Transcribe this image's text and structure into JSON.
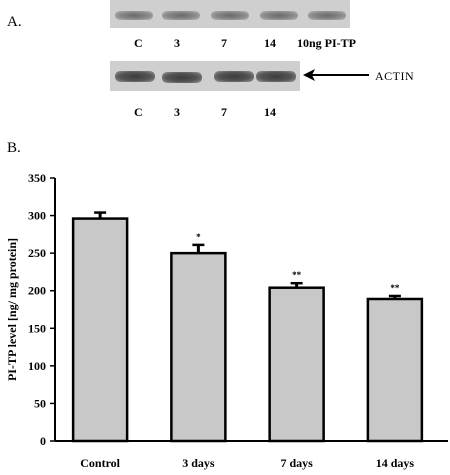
{
  "panel_a": {
    "label": "A.",
    "top_blot_lanes": [
      "C",
      "3",
      "7",
      "14",
      "10ng PI-TP"
    ],
    "bottom_blot_lanes": [
      "C",
      "3",
      "7",
      "14"
    ],
    "actin_label": "ACTIN"
  },
  "panel_b": {
    "label": "B."
  },
  "chart_data": {
    "type": "bar",
    "categories": [
      "Control",
      "3 days",
      "7 days",
      "14 days"
    ],
    "values": [
      296,
      250,
      204,
      189
    ],
    "errors": [
      8,
      11,
      6,
      4
    ],
    "significance": [
      "",
      "*",
      "**",
      "**"
    ],
    "ylabel": "PI-TP level [ng/ mg protein]",
    "xlabel": "",
    "ylim": [
      0,
      350
    ],
    "yticks": [
      0,
      50,
      100,
      150,
      200,
      250,
      300,
      350
    ],
    "grid": false,
    "bar_color": "#c8c8c8"
  }
}
